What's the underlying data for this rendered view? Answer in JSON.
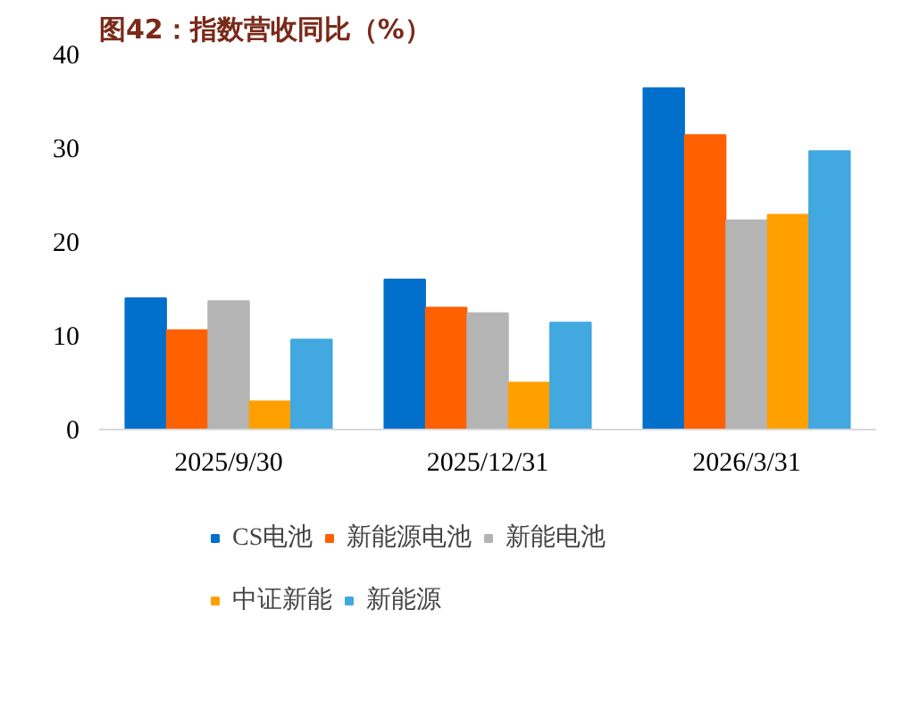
{
  "chart_data": {
    "type": "bar",
    "title": "图42：指数营收同比（%）",
    "categories": [
      "2025/9/30",
      "2025/12/31",
      "2026/3/31"
    ],
    "series": [
      {
        "name": "CS电池",
        "color": "#0070cc",
        "values": [
          14.0,
          16.0,
          36.4
        ]
      },
      {
        "name": "新能源电池",
        "color": "#ff6000",
        "values": [
          10.6,
          13.0,
          31.4
        ]
      },
      {
        "name": "新能电池",
        "color": "#b4b4b4",
        "values": [
          13.7,
          12.4,
          22.3
        ]
      },
      {
        "name": "中证新能",
        "color": "#ffa000",
        "values": [
          3.0,
          5.0,
          22.9
        ]
      },
      {
        "name": "新能源",
        "color": "#41a8e0",
        "values": [
          9.6,
          11.4,
          29.7
        ]
      }
    ],
    "ylim": [
      0,
      40
    ],
    "yticks": [
      0,
      10,
      20,
      30,
      40
    ],
    "grid": false,
    "legend": "bottom"
  }
}
